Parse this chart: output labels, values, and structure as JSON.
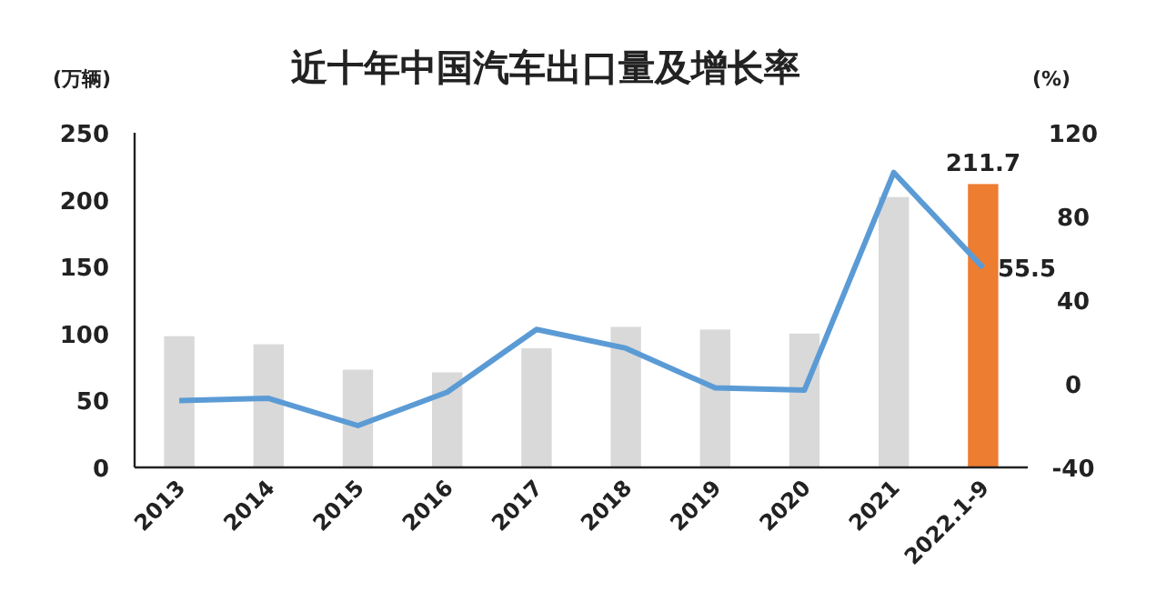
{
  "chart_data": {
    "type": "bar",
    "title": "近十年中国汽车出口量及增长率",
    "ylabel": "(万辆)",
    "y2label": "(%)",
    "categories": [
      "2013",
      "2014",
      "2015",
      "2016",
      "2017",
      "2018",
      "2019",
      "2020",
      "2021",
      "2022.1-9"
    ],
    "series": [
      {
        "colors": [
          "#d9d9d9",
          "#d9d9d9",
          "#d9d9d9",
          "#d9d9d9",
          "#d9d9d9",
          "#d9d9d9",
          "#d9d9d9",
          "#d9d9d9",
          "#d9d9d9",
          "#ed7d31"
        ],
        "values": [
          98,
          92,
          73,
          71,
          89,
          105,
          103,
          100,
          202,
          211.7
        ],
        "value_labels": [
          null,
          null,
          null,
          null,
          null,
          null,
          null,
          null,
          null,
          "211.7"
        ]
      },
      {
        "type": "line",
        "axis": "y2",
        "color": "#5b9bd5",
        "values": [
          -8,
          -7,
          -20,
          -4,
          26,
          17,
          -2,
          -3,
          101,
          55.5
        ],
        "value_labels": [
          null,
          null,
          null,
          null,
          null,
          null,
          null,
          null,
          null,
          "55.5"
        ]
      }
    ],
    "ylim": [
      0,
      250
    ],
    "yticks": [
      0,
      50,
      100,
      150,
      200,
      250
    ],
    "y2lim": [
      -40,
      120
    ],
    "y2ticks": [
      -40,
      0,
      40,
      80,
      120
    ],
    "grid": false,
    "marker": "none"
  }
}
